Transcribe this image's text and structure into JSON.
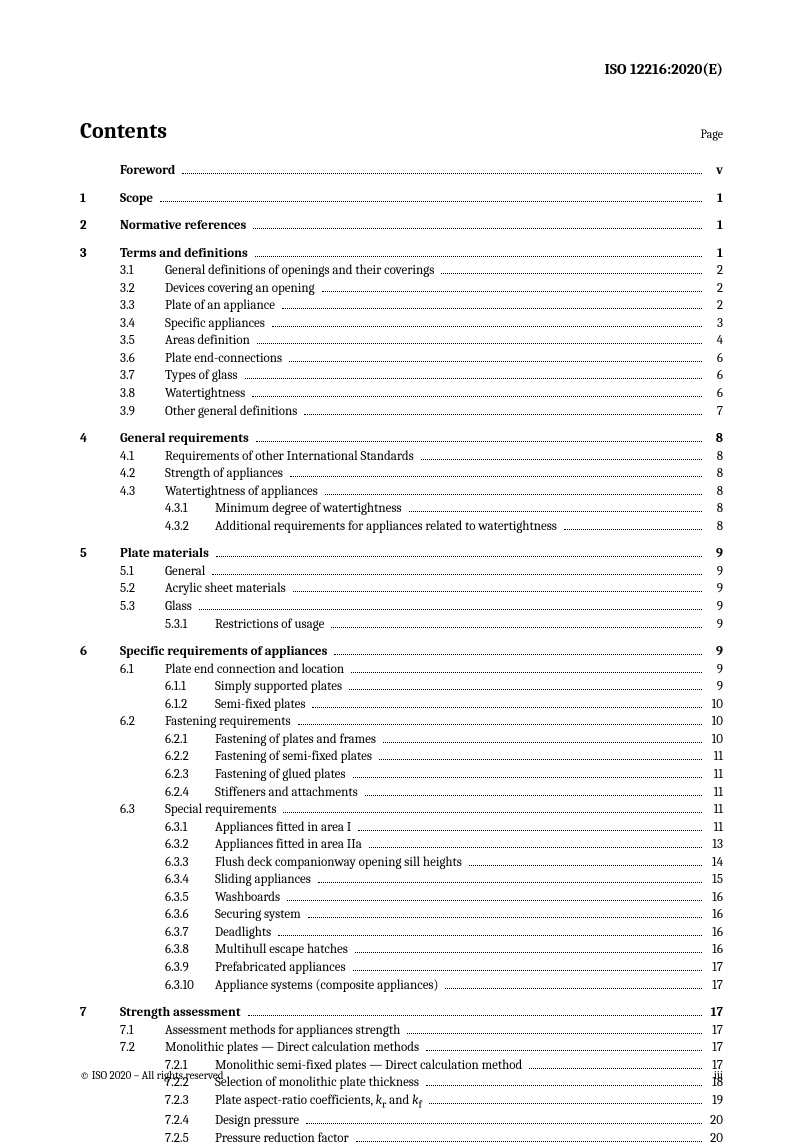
{
  "header": "ISO 12216:2020(E)",
  "title": "Contents",
  "page_label": "Page",
  "footer_left": "© ISO 2020 – All rights reserved",
  "footer_right": "iii",
  "entries": [
    {
      "level": 0,
      "num": "",
      "sub": "",
      "subsub": "",
      "text": "Foreword",
      "bold": true,
      "page": "v"
    },
    {
      "gap": true
    },
    {
      "level": 0,
      "num": "1",
      "sub": "",
      "subsub": "",
      "text": "Scope",
      "bold": true,
      "page": "1"
    },
    {
      "gap": true
    },
    {
      "level": 0,
      "num": "2",
      "sub": "",
      "subsub": "",
      "text": "Normative references",
      "bold": true,
      "page": "1"
    },
    {
      "gap": true
    },
    {
      "level": 0,
      "num": "3",
      "sub": "",
      "subsub": "",
      "text": "Terms and definitions",
      "bold": true,
      "page": "1"
    },
    {
      "level": 1,
      "num": "",
      "sub": "3.1",
      "subsub": "",
      "text": "General definitions of openings and their coverings",
      "page": "2"
    },
    {
      "level": 1,
      "num": "",
      "sub": "3.2",
      "subsub": "",
      "text": "Devices covering an opening",
      "page": "2"
    },
    {
      "level": 1,
      "num": "",
      "sub": "3.3",
      "subsub": "",
      "text": "Plate of an appliance",
      "page": "2"
    },
    {
      "level": 1,
      "num": "",
      "sub": "3.4",
      "subsub": "",
      "text": "Specific appliances",
      "page": "3"
    },
    {
      "level": 1,
      "num": "",
      "sub": "3.5",
      "subsub": "",
      "text": "Areas definition",
      "page": "4"
    },
    {
      "level": 1,
      "num": "",
      "sub": "3.6",
      "subsub": "",
      "text": "Plate end-connections",
      "page": "6"
    },
    {
      "level": 1,
      "num": "",
      "sub": "3.7",
      "subsub": "",
      "text": "Types of glass",
      "page": "6"
    },
    {
      "level": 1,
      "num": "",
      "sub": "3.8",
      "subsub": "",
      "text": "Watertightness",
      "page": "6"
    },
    {
      "level": 1,
      "num": "",
      "sub": "3.9",
      "subsub": "",
      "text": "Other general definitions",
      "page": "7"
    },
    {
      "gap": true
    },
    {
      "level": 0,
      "num": "4",
      "sub": "",
      "subsub": "",
      "text": "General requirements",
      "bold": true,
      "page": "8"
    },
    {
      "level": 1,
      "num": "",
      "sub": "4.1",
      "subsub": "",
      "text": "Requirements of other International Standards",
      "page": "8"
    },
    {
      "level": 1,
      "num": "",
      "sub": "4.2",
      "subsub": "",
      "text": "Strength of appliances",
      "page": "8"
    },
    {
      "level": 1,
      "num": "",
      "sub": "4.3",
      "subsub": "",
      "text": "Watertightness of appliances",
      "page": "8"
    },
    {
      "level": 2,
      "num": "",
      "sub": "",
      "subsub": "4.3.1",
      "text": "Minimum degree of watertightness",
      "page": "8"
    },
    {
      "level": 2,
      "num": "",
      "sub": "",
      "subsub": "4.3.2",
      "text": "Additional requirements for appliances related to watertightness",
      "page": "8"
    },
    {
      "gap": true
    },
    {
      "level": 0,
      "num": "5",
      "sub": "",
      "subsub": "",
      "text": "Plate materials",
      "bold": true,
      "page": "9"
    },
    {
      "level": 1,
      "num": "",
      "sub": "5.1",
      "subsub": "",
      "text": "General",
      "page": "9"
    },
    {
      "level": 1,
      "num": "",
      "sub": "5.2",
      "subsub": "",
      "text": "Acrylic sheet materials",
      "page": "9"
    },
    {
      "level": 1,
      "num": "",
      "sub": "5.3",
      "subsub": "",
      "text": "Glass",
      "page": "9"
    },
    {
      "level": 2,
      "num": "",
      "sub": "",
      "subsub": "5.3.1",
      "text": "Restrictions of usage",
      "page": "9"
    },
    {
      "gap": true
    },
    {
      "level": 0,
      "num": "6",
      "sub": "",
      "subsub": "",
      "text": "Specific requirements of appliances",
      "bold": true,
      "page": "9"
    },
    {
      "level": 1,
      "num": "",
      "sub": "6.1",
      "subsub": "",
      "text": "Plate end connection and location",
      "page": "9"
    },
    {
      "level": 2,
      "num": "",
      "sub": "",
      "subsub": "6.1.1",
      "text": "Simply supported plates",
      "page": "9"
    },
    {
      "level": 2,
      "num": "",
      "sub": "",
      "subsub": "6.1.2",
      "text": "Semi-fixed plates",
      "page": "10"
    },
    {
      "level": 1,
      "num": "",
      "sub": "6.2",
      "subsub": "",
      "text": "Fastening requirements",
      "page": "10"
    },
    {
      "level": 2,
      "num": "",
      "sub": "",
      "subsub": "6.2.1",
      "text": "Fastening of plates and frames",
      "page": "10"
    },
    {
      "level": 2,
      "num": "",
      "sub": "",
      "subsub": "6.2.2",
      "text": "Fastening of semi-fixed plates",
      "page": "11"
    },
    {
      "level": 2,
      "num": "",
      "sub": "",
      "subsub": "6.2.3",
      "text": "Fastening of glued plates",
      "page": "11"
    },
    {
      "level": 2,
      "num": "",
      "sub": "",
      "subsub": "6.2.4",
      "text": "Stiffeners and attachments",
      "page": "11"
    },
    {
      "level": 1,
      "num": "",
      "sub": "6.3",
      "subsub": "",
      "text": "Special requirements",
      "page": "11"
    },
    {
      "level": 2,
      "num": "",
      "sub": "",
      "subsub": "6.3.1",
      "text": "Appliances fitted in area I",
      "page": "11"
    },
    {
      "level": 2,
      "num": "",
      "sub": "",
      "subsub": "6.3.2",
      "text": "Appliances fitted in area IIa",
      "page": "13"
    },
    {
      "level": 2,
      "num": "",
      "sub": "",
      "subsub": "6.3.3",
      "text": "Flush deck companionway opening sill heights",
      "page": "14"
    },
    {
      "level": 2,
      "num": "",
      "sub": "",
      "subsub": "6.3.4",
      "text": "Sliding appliances",
      "page": "15"
    },
    {
      "level": 2,
      "num": "",
      "sub": "",
      "subsub": "6.3.5",
      "text": "Washboards",
      "page": "16"
    },
    {
      "level": 2,
      "num": "",
      "sub": "",
      "subsub": "6.3.6",
      "text": "Securing system",
      "page": "16"
    },
    {
      "level": 2,
      "num": "",
      "sub": "",
      "subsub": "6.3.7",
      "text": "Deadlights",
      "page": "16"
    },
    {
      "level": 2,
      "num": "",
      "sub": "",
      "subsub": "6.3.8",
      "text": "Multihull escape hatches",
      "page": "16"
    },
    {
      "level": 2,
      "num": "",
      "sub": "",
      "subsub": "6.3.9",
      "text": "Prefabricated appliances",
      "page": "17"
    },
    {
      "level": 2,
      "num": "",
      "sub": "",
      "subsub": "6.3.10",
      "text": "Appliance systems (composite appliances)",
      "page": "17"
    },
    {
      "gap": true
    },
    {
      "level": 0,
      "num": "7",
      "sub": "",
      "subsub": "",
      "text": "Strength assessment",
      "bold": true,
      "page": "17"
    },
    {
      "level": 1,
      "num": "",
      "sub": "7.1",
      "subsub": "",
      "text": "Assessment methods for appliances strength",
      "page": "17"
    },
    {
      "level": 1,
      "num": "",
      "sub": "7.2",
      "subsub": "",
      "text": "Monolithic plates — Direct calculation methods",
      "page": "17"
    },
    {
      "level": 2,
      "num": "",
      "sub": "",
      "subsub": "7.2.1",
      "text": "Monolithic semi-fixed plates — Direct calculation method",
      "page": "17"
    },
    {
      "level": 2,
      "num": "",
      "sub": "",
      "subsub": "7.2.2",
      "text": "Selection of monolithic plate thickness",
      "page": "18"
    },
    {
      "level": 2,
      "num": "",
      "sub": "",
      "subsub": "7.2.3",
      "text": "Plate aspect-ratio coefficients, kᵣ and k_f",
      "page": "19",
      "special": "coeffs"
    },
    {
      "level": 2,
      "num": "",
      "sub": "",
      "subsub": "7.2.4",
      "text": "Design pressure",
      "page": "20"
    },
    {
      "level": 2,
      "num": "",
      "sub": "",
      "subsub": "7.2.5",
      "text": "Pressure reduction factor",
      "page": "20"
    }
  ]
}
